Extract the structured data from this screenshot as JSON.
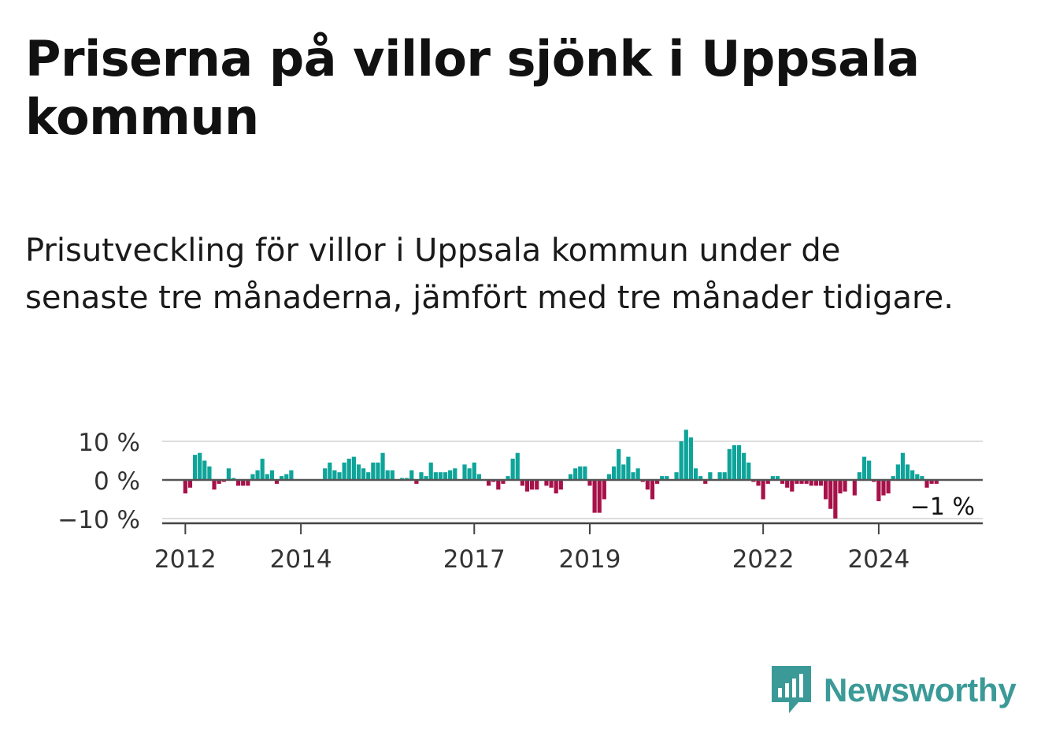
{
  "title": "Priserna på villor sjönk i Uppsala kommun",
  "subtitle": "Prisutveckling för villor i Uppsala kommun under de senaste tre månaderna, jämfört med tre månader tidigare.",
  "brand": "Newsworthy",
  "colors": {
    "positive": "#0ea49a",
    "negative": "#a7114a",
    "brand": "#3b9a98"
  },
  "chart_data": {
    "type": "bar",
    "ylim": [
      -11,
      12
    ],
    "yticks": [
      {
        "value": 10,
        "label": "10 %"
      },
      {
        "value": 0,
        "label": "0 %"
      },
      {
        "value": -10,
        "label": "−10 %"
      }
    ],
    "xticks": [
      {
        "value": 2012,
        "label": "2012"
      },
      {
        "value": 2014,
        "label": "2014"
      },
      {
        "value": 2017,
        "label": "2017"
      },
      {
        "value": 2019,
        "label": "2019"
      },
      {
        "value": 2022,
        "label": "2022"
      },
      {
        "value": 2024,
        "label": "2024"
      }
    ],
    "x_start": 2012.0,
    "step_years": 0.08333,
    "annotation": "−1 %",
    "values": [
      -3.5,
      -2,
      6.5,
      7,
      5,
      3.5,
      -2.5,
      -1,
      -0.5,
      3,
      0.5,
      -1.5,
      -1.5,
      -1.5,
      1.5,
      2.5,
      5.5,
      1.5,
      2.5,
      -1,
      1,
      1.5,
      2.5,
      0,
      0,
      0,
      0,
      0,
      0,
      3,
      4.5,
      2.5,
      2,
      4.5,
      5.5,
      6,
      4,
      3,
      2,
      4.5,
      4.5,
      7,
      2.5,
      2.5,
      0,
      0.5,
      0.5,
      2.5,
      -1,
      2,
      1,
      4.5,
      2,
      2,
      2,
      2.5,
      3,
      0,
      4,
      3,
      4.5,
      1.5,
      0,
      -1.5,
      -0.5,
      -2.5,
      -1,
      1,
      5.5,
      7,
      -1.5,
      -3,
      -2.5,
      -2.5,
      0,
      -1.5,
      -2,
      -3.5,
      -2.5,
      0,
      1.5,
      3,
      3.5,
      3.5,
      -1.5,
      -8.5,
      -8.5,
      -5,
      1.5,
      3.5,
      8,
      4,
      6,
      2,
      3,
      -0.5,
      -2.5,
      -5,
      -1,
      1,
      1,
      0,
      2,
      10,
      13,
      11,
      3,
      1,
      -1,
      2,
      0,
      2,
      2,
      8,
      9,
      9,
      7,
      4.5,
      -0.5,
      -1.5,
      -5,
      -1,
      1,
      1,
      -1,
      -2,
      -3,
      -1,
      -1,
      -1,
      -1.5,
      -1.5,
      -1.5,
      -5,
      -7.5,
      -10,
      -3.5,
      -3,
      0,
      -4,
      2,
      6,
      5,
      -0.5,
      -5.5,
      -4,
      -3.5,
      1,
      4,
      7,
      4,
      2.5,
      1.5,
      1,
      -2,
      -1,
      -1,
      0,
      0,
      0,
      0,
      0,
      0,
      0,
      0,
      0,
      0,
      0
    ]
  }
}
